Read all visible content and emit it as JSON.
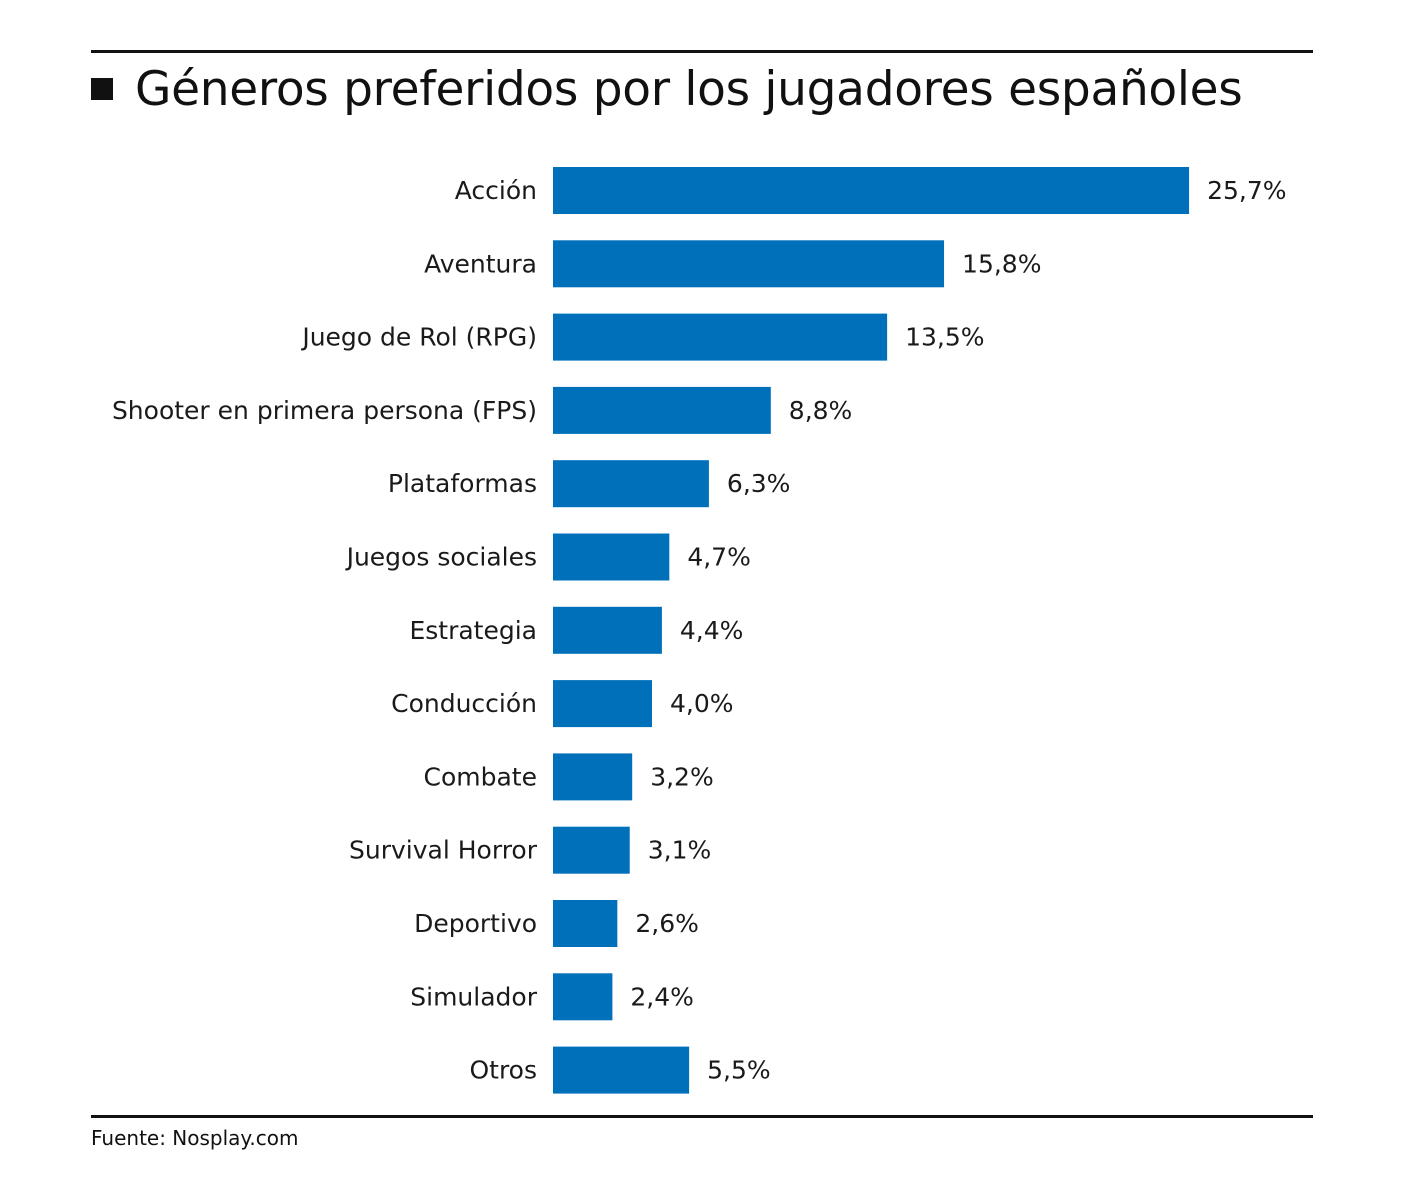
{
  "title": "Géneros preferidos por los jugadores españoles",
  "source": "Fuente: Nosplay.com",
  "colors": {
    "bar": "#0070bb",
    "text": "#1a1a1a",
    "rule": "#111111"
  },
  "chart_data": {
    "type": "bar",
    "orientation": "horizontal",
    "title": "Géneros preferidos por los jugadores españoles",
    "categories": [
      "Acción",
      "Aventura",
      "Juego de Rol (RPG)",
      "Shooter en primera persona (FPS)",
      "Plataformas",
      "Juegos sociales",
      "Estrategia",
      "Conducción",
      "Combate",
      "Survival Horror",
      "Deportivo",
      "Simulador",
      "Otros"
    ],
    "values": [
      25.7,
      15.8,
      13.5,
      8.8,
      6.3,
      4.7,
      4.4,
      4.0,
      3.2,
      3.1,
      2.6,
      2.4,
      5.5
    ],
    "value_labels": [
      "25,7%",
      "15,8%",
      "13,5%",
      "8,8%",
      "6,3%",
      "4,7%",
      "4,4%",
      "4,0%",
      "3,2%",
      "3,1%",
      "2,6%",
      "2,4%",
      "5,5%"
    ],
    "unit": "%",
    "xlabel": "",
    "ylabel": "",
    "grid": false,
    "legend": "none"
  }
}
